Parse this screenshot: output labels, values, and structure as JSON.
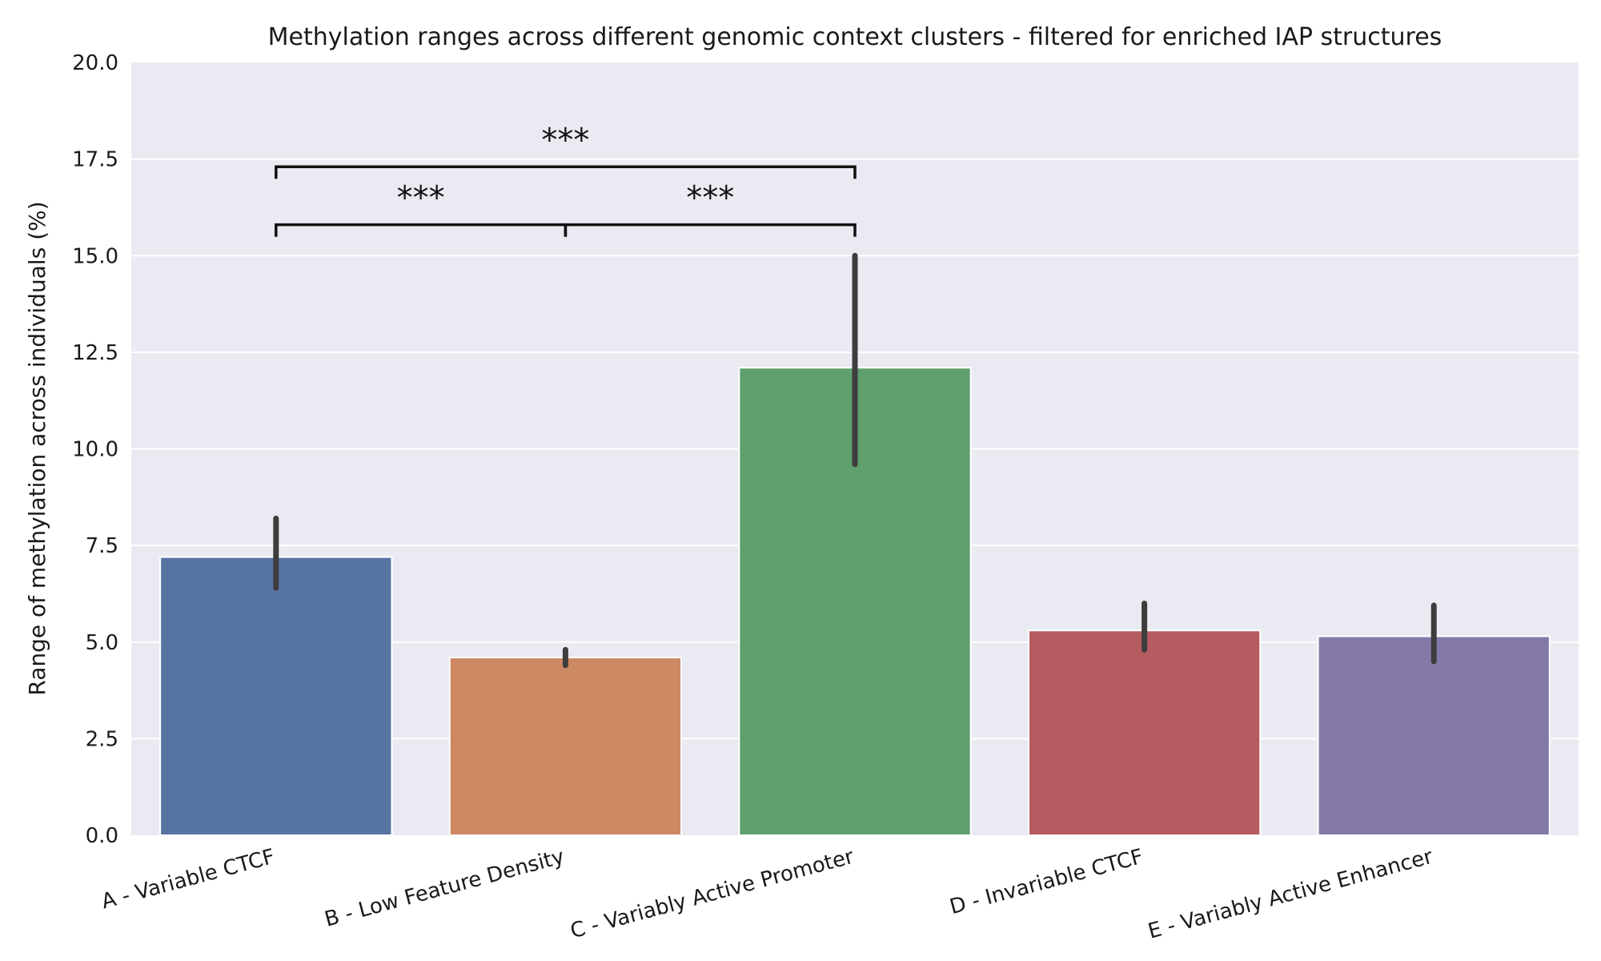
{
  "chart_data": {
    "type": "bar",
    "title": "Methylation ranges across different genomic context clusters - filtered for enriched IAP structures",
    "xlabel": "",
    "ylabel": "Range of methylation across individuals (%)",
    "ylim": [
      0,
      20
    ],
    "yticks": [
      "0.0",
      "2.5",
      "5.0",
      "7.5",
      "10.0",
      "12.5",
      "15.0",
      "17.5",
      "20.0"
    ],
    "categories": [
      "A - Variable CTCF",
      "B - Low Feature Density",
      "C - Variably Active Promoter",
      "D - Invariable CTCF",
      "E - Variably Active Enhancer"
    ],
    "values": [
      7.2,
      4.6,
      12.1,
      5.3,
      5.15
    ],
    "error_low": [
      6.4,
      4.4,
      9.6,
      4.8,
      4.5
    ],
    "error_high": [
      8.2,
      4.8,
      15.0,
      6.0,
      5.95
    ],
    "colors": [
      "#5874a3",
      "#cd8864",
      "#5f9f6e",
      "#b45c60",
      "#8579a9"
    ],
    "background": "#eaeaf2",
    "grid": true,
    "significance": [
      {
        "from": 0,
        "to": 1,
        "label": "***",
        "level": 15.8
      },
      {
        "from": 1,
        "to": 2,
        "label": "***",
        "level": 15.8
      },
      {
        "from": 0,
        "to": 2,
        "label": "***",
        "level": 17.3
      }
    ]
  }
}
